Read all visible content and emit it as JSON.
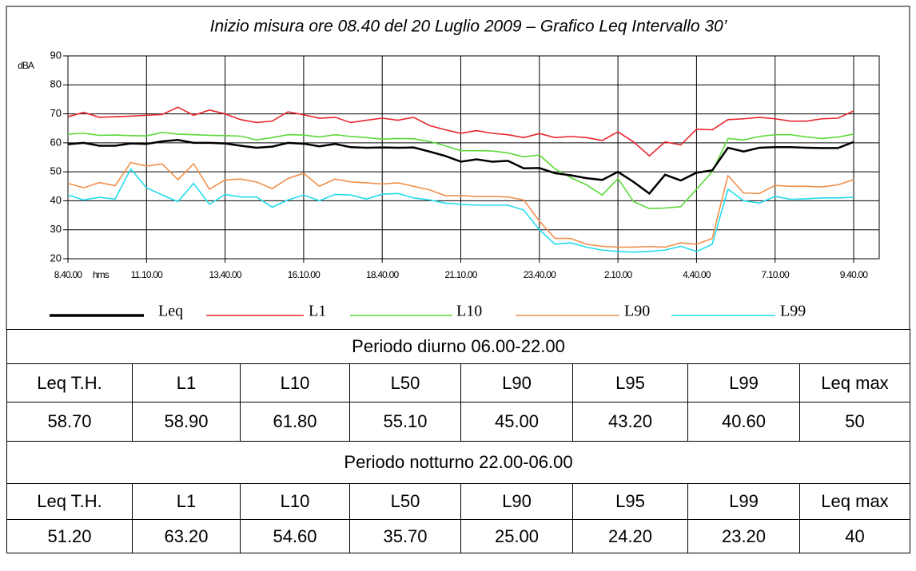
{
  "chart_data": {
    "type": "line",
    "title": "Inizio misura ore 08.40 del 20 Luglio 2009 –  Grafico Leq Intervallo 30’",
    "x_label": "hms",
    "y_label": "dBA",
    "categories": [
      "8.40.00",
      null,
      null,
      null,
      null,
      "11.10.00",
      null,
      null,
      null,
      null,
      "13.40.00",
      null,
      null,
      null,
      null,
      "16.10.00",
      null,
      null,
      null,
      null,
      "18.40.00",
      null,
      null,
      null,
      null,
      "21.10.00",
      null,
      null,
      null,
      null,
      "23.40.00",
      null,
      null,
      null,
      null,
      "2.10.00",
      null,
      null,
      null,
      null,
      "4.40.00",
      null,
      null,
      null,
      null,
      "7.10.00",
      null,
      null,
      null,
      null,
      "9.40.00"
    ],
    "ylim": [
      20,
      90
    ],
    "yticks": [
      20,
      30,
      40,
      50,
      60,
      70,
      80,
      90
    ],
    "grid": true,
    "series": [
      {
        "name": "Leq",
        "color": "#000000",
        "values": [
          59.5,
          60,
          59,
          59,
          59.8,
          59.6,
          60.5,
          61,
          60,
          60,
          59.8,
          59,
          58.3,
          58.7,
          60,
          59.7,
          58.8,
          59.6,
          58.5,
          58.3,
          58.4,
          58.3,
          58.4,
          57,
          55.5,
          53.5,
          54.3,
          53.5,
          53.8,
          51.2,
          51.3,
          49.5,
          48.8,
          47.8,
          47.2,
          50,
          46.5,
          42.5,
          49,
          47,
          49.7,
          50.5,
          58.3,
          57,
          58.3,
          58.5,
          58.5,
          58.3,
          58.2,
          58.2,
          60.3
        ]
      },
      {
        "name": "L1",
        "color": "#e8262b",
        "values": [
          69,
          70.5,
          68.8,
          69,
          69.2,
          69.5,
          69.8,
          72.3,
          69.5,
          71.3,
          70,
          68,
          67,
          67.5,
          70.7,
          69.7,
          68.5,
          68.8,
          67,
          67.8,
          68.5,
          67.8,
          68.8,
          66,
          64.5,
          63.3,
          64.2,
          63.3,
          62.8,
          61.8,
          63.2,
          61.8,
          62.2,
          61.8,
          60.8,
          63.8,
          60.3,
          55.5,
          60.3,
          59.3,
          64.7,
          64.5,
          68,
          68.3,
          68.8,
          68.3,
          67.5,
          67.5,
          68.3,
          68.5,
          71
        ]
      },
      {
        "name": "L10",
        "color": "#5cd838",
        "values": [
          63,
          63.3,
          62.6,
          62.7,
          62.5,
          62.4,
          63.6,
          63,
          62.8,
          62.6,
          62.5,
          62.3,
          61,
          61.8,
          62.8,
          62.7,
          62,
          62.8,
          62.2,
          61.8,
          61.3,
          61.5,
          61.4,
          60.5,
          59,
          57.3,
          57.3,
          57.2,
          56.5,
          55.2,
          55.8,
          51,
          48,
          45.5,
          42,
          47.7,
          39.7,
          37.3,
          37.5,
          38,
          44,
          50,
          61.5,
          61,
          62.2,
          62.8,
          62.8,
          62,
          61.5,
          62,
          63
        ]
      },
      {
        "name": "L90",
        "color": "#f0904c",
        "values": [
          46,
          44.5,
          46.3,
          45.2,
          53.2,
          52,
          52.7,
          47.3,
          52.8,
          44,
          47.2,
          47.5,
          46.5,
          44.2,
          47.7,
          49.5,
          45,
          47.5,
          46.5,
          46.2,
          45.8,
          46.2,
          45,
          43.8,
          41.8,
          41.8,
          41.5,
          41.5,
          41.3,
          40.3,
          33,
          27,
          27,
          25,
          24.3,
          24,
          24,
          24.2,
          24,
          25.5,
          25,
          27,
          48.7,
          42.7,
          42.5,
          45.3,
          45,
          45,
          44.8,
          45.5,
          47.3
        ]
      },
      {
        "name": "L99",
        "color": "#22dcec",
        "values": [
          42,
          40.3,
          41.2,
          40.6,
          51,
          44.5,
          42,
          39.7,
          46,
          38.8,
          42.2,
          41.3,
          41.3,
          37.8,
          40.3,
          42,
          40,
          42.2,
          42,
          40.6,
          42.3,
          42.5,
          41,
          40.3,
          39.2,
          38.8,
          38.5,
          38.5,
          38.5,
          36.8,
          30,
          25,
          25.5,
          24,
          23,
          22.5,
          22.3,
          22.5,
          23,
          24.3,
          22.5,
          25,
          44,
          40,
          39.2,
          41.5,
          40.5,
          40.7,
          41,
          41,
          41.2
        ]
      }
    ]
  },
  "table": {
    "sections": [
      {
        "title": "Periodo diurno 06.00-22.00",
        "header": [
          "Leq T.H.",
          "L1",
          "L10",
          "L50",
          "L90",
          "L95",
          "L99",
          "Leq max"
        ],
        "values": [
          "58.70",
          "58.90",
          "61.80",
          "55.10",
          "45.00",
          "43.20",
          "40.60",
          "50"
        ]
      },
      {
        "title": "Periodo notturno 22.00-06.00",
        "header": [
          "Leq T.H.",
          "L1",
          "L10",
          "L50",
          "L90",
          "L95",
          "L99",
          "Leq max"
        ],
        "values": [
          "51.20",
          "63.20",
          "54.60",
          "35.70",
          "25.00",
          "24.20",
          "23.20",
          "40"
        ]
      }
    ]
  }
}
